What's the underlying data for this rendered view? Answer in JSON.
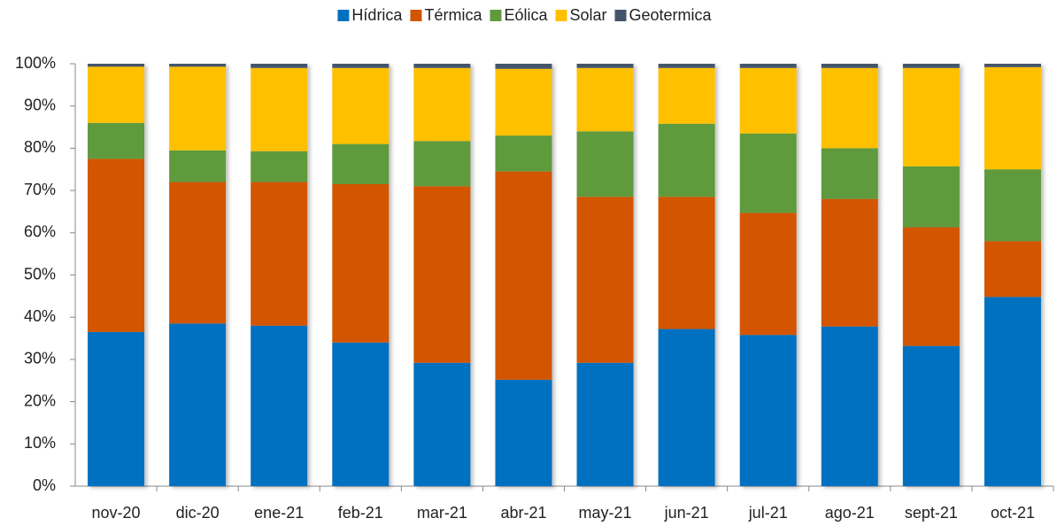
{
  "chart_data": {
    "type": "stacked_bar_100",
    "categories": [
      "nov-20",
      "dic-20",
      "ene-21",
      "feb-21",
      "mar-21",
      "abr-21",
      "may-21",
      "jun-21",
      "jul-21",
      "ago-21",
      "sept-21",
      "oct-21"
    ],
    "series": [
      {
        "name": "Hídrica",
        "color": "#0070c0",
        "values": [
          36.5,
          38.5,
          38,
          34,
          29.2,
          25.2,
          29.2,
          37.2,
          35.8,
          37.8,
          33.2,
          44.8
        ]
      },
      {
        "name": "Térmica",
        "color": "#d35400",
        "values": [
          41,
          33.5,
          34,
          37.5,
          41.8,
          49.3,
          39.3,
          31.3,
          28.9,
          30.2,
          28.1,
          13.2
        ]
      },
      {
        "name": "Eólica",
        "color": "#5f9a3d",
        "values": [
          8.5,
          7.5,
          7.3,
          9.5,
          10.7,
          8.5,
          15.5,
          17.3,
          18.8,
          12,
          14.4,
          17
        ]
      },
      {
        "name": "Solar",
        "color": "#ffc000",
        "values": [
          13.3,
          19.8,
          19.7,
          18,
          17.3,
          15.8,
          15,
          13.2,
          15.5,
          19,
          23.3,
          24.2
        ]
      },
      {
        "name": "Geotermica",
        "color": "#44546a",
        "values": [
          0.7,
          0.7,
          1,
          1,
          1,
          1.2,
          1,
          1,
          1,
          1,
          1,
          0.8
        ]
      }
    ],
    "ylim": [
      0,
      100
    ],
    "yticks": [
      {
        "value": 0,
        "label": "0%"
      },
      {
        "value": 10,
        "label": "10%"
      },
      {
        "value": 20,
        "label": "20%"
      },
      {
        "value": 30,
        "label": "30%"
      },
      {
        "value": 40,
        "label": "40%"
      },
      {
        "value": 50,
        "label": "50%"
      },
      {
        "value": 60,
        "label": "60%"
      },
      {
        "value": 70,
        "label": "70%"
      },
      {
        "value": 80,
        "label": "80%"
      },
      {
        "value": 90,
        "label": "90%"
      },
      {
        "value": 100,
        "label": "100%"
      }
    ]
  }
}
